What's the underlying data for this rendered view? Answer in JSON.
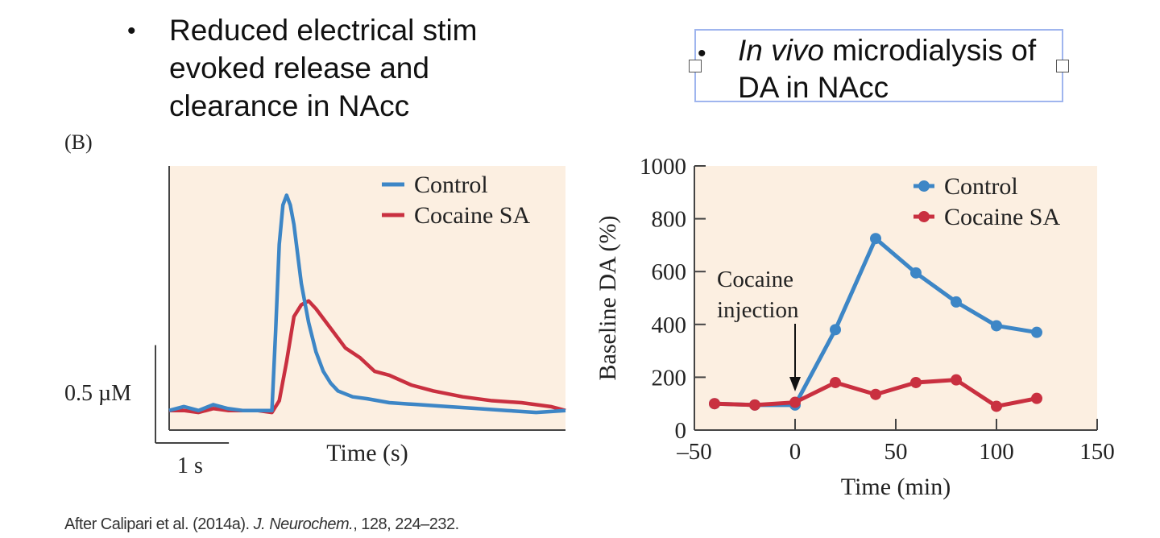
{
  "bullets": {
    "left": {
      "symbol": "•",
      "lines": [
        "Reduced electrical stim",
        "evoked release and",
        "clearance in NAcc"
      ]
    },
    "right": {
      "symbol": "•",
      "italic": "In vivo",
      "rest": " microdialysis of",
      "line2": "DA in NAcc"
    }
  },
  "panel_label": "(B)",
  "caption": {
    "prefix": "After Calipari et al. (2014a). ",
    "journal": "J. Neurochem.",
    "suffix": ", 128, 224–232."
  },
  "colors": {
    "control": "#3d86c6",
    "cocaine": "#c93040",
    "plot_bg": "#fcefe1"
  },
  "chart_data": [
    {
      "type": "line",
      "title": "",
      "xlabel": "Time (s)",
      "ylabel": "",
      "scale_bar": {
        "y_label": "0.5 µM",
        "y_value": 0.5,
        "x_label": "1 s",
        "x_value": 1
      },
      "xlim": [
        0,
        5.4
      ],
      "ylim": [
        -0.1,
        1.25
      ],
      "legend_position": "top-right",
      "series": [
        {
          "name": "Control",
          "x": [
            0,
            0.2,
            0.4,
            0.6,
            0.8,
            1.0,
            1.2,
            1.4,
            1.45,
            1.5,
            1.55,
            1.6,
            1.65,
            1.7,
            1.75,
            1.8,
            1.9,
            2.0,
            2.1,
            2.2,
            2.3,
            2.5,
            2.7,
            3.0,
            3.4,
            3.8,
            4.2,
            4.6,
            5.0,
            5.4
          ],
          "y": [
            0.0,
            0.02,
            0.0,
            0.03,
            0.01,
            0.0,
            0.0,
            0.0,
            0.4,
            0.85,
            1.05,
            1.1,
            1.05,
            0.95,
            0.8,
            0.65,
            0.45,
            0.3,
            0.2,
            0.14,
            0.1,
            0.07,
            0.06,
            0.04,
            0.03,
            0.02,
            0.01,
            0.0,
            -0.01,
            0.0
          ]
        },
        {
          "name": "Cocaine SA",
          "x": [
            0,
            0.2,
            0.4,
            0.6,
            0.8,
            1.0,
            1.2,
            1.4,
            1.5,
            1.6,
            1.7,
            1.8,
            1.9,
            2.0,
            2.2,
            2.4,
            2.6,
            2.8,
            3.0,
            3.3,
            3.6,
            4.0,
            4.4,
            4.8,
            5.2,
            5.4
          ],
          "y": [
            0.0,
            0.0,
            -0.01,
            0.01,
            0.0,
            0.0,
            0.0,
            -0.01,
            0.05,
            0.25,
            0.48,
            0.54,
            0.56,
            0.52,
            0.42,
            0.32,
            0.27,
            0.2,
            0.18,
            0.13,
            0.1,
            0.07,
            0.05,
            0.04,
            0.02,
            0.0
          ]
        }
      ]
    },
    {
      "type": "line",
      "title": "",
      "xlabel": "Time (min)",
      "ylabel": "Baseline DA (%)",
      "xlim": [
        -50,
        150
      ],
      "ylim": [
        0,
        1000
      ],
      "xticks": [
        -50,
        0,
        50,
        100,
        150
      ],
      "xtick_labels": [
        "–50",
        "0",
        "50",
        "100",
        "150"
      ],
      "yticks": [
        0,
        200,
        400,
        600,
        800,
        1000
      ],
      "legend_position": "top-right",
      "annotation": {
        "lines": [
          "Cocaine",
          "injection"
        ],
        "x": 0
      },
      "series": [
        {
          "name": "Control",
          "x": [
            -40,
            -20,
            0,
            20,
            40,
            60,
            80,
            100,
            120
          ],
          "y": [
            100,
            95,
            95,
            380,
            725,
            595,
            485,
            395,
            370
          ]
        },
        {
          "name": "Cocaine SA",
          "x": [
            -40,
            -20,
            0,
            20,
            40,
            60,
            80,
            100,
            120
          ],
          "y": [
            100,
            95,
            105,
            180,
            135,
            180,
            190,
            90,
            120
          ]
        }
      ]
    }
  ]
}
